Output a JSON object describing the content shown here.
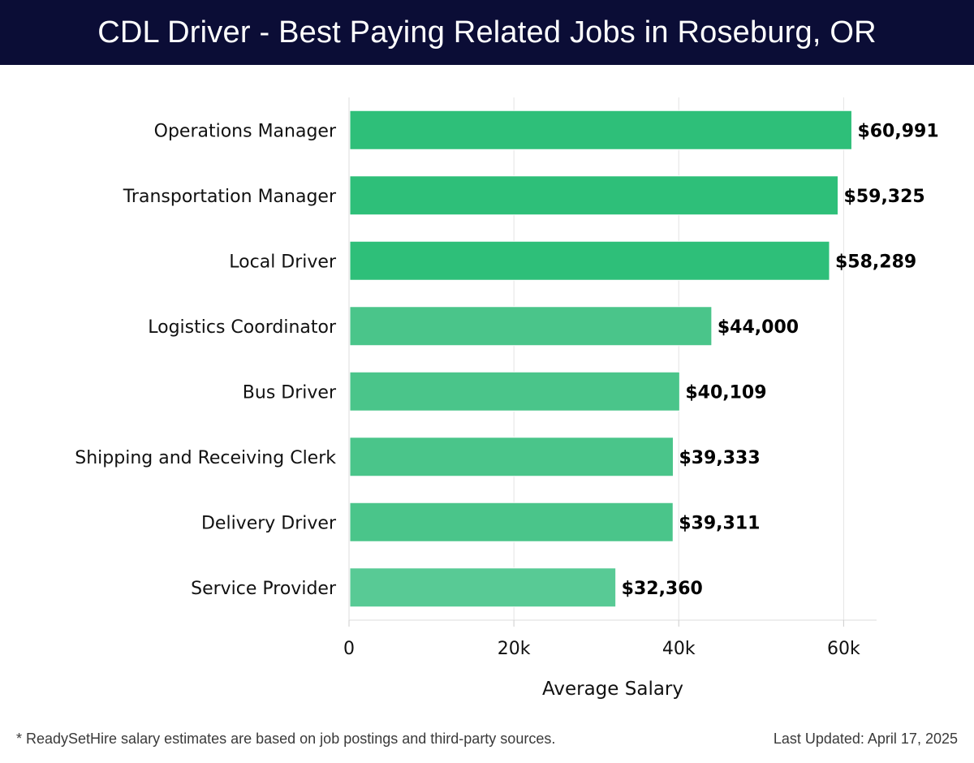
{
  "header": {
    "title": "CDL Driver - Best Paying Related Jobs in Roseburg, OR"
  },
  "chart_data": {
    "type": "bar",
    "orientation": "horizontal",
    "categories": [
      "Operations Manager",
      "Transportation Manager",
      "Local Driver",
      "Logistics Coordinator",
      "Bus Driver",
      "Shipping and Receiving Clerk",
      "Delivery Driver",
      "Service Provider"
    ],
    "values": [
      60991,
      59325,
      58289,
      44000,
      40109,
      39333,
      39311,
      32360
    ],
    "value_labels": [
      "$60,991",
      "$59,325",
      "$58,289",
      "$44,000",
      "$40,109",
      "$39,333",
      "$39,311",
      "$32,360"
    ],
    "bar_colors": [
      "#2ebf79",
      "#2ebf79",
      "#2ebf79",
      "#4ac58a",
      "#4ac58a",
      "#4ac58a",
      "#4ac58a",
      "#58ca95"
    ],
    "xlim": [
      0,
      64000
    ],
    "xticks": [
      0,
      20000,
      40000,
      60000
    ],
    "xtick_labels": [
      "0",
      "20k",
      "40k",
      "60k"
    ],
    "xlabel": "Average Salary",
    "grid": true
  },
  "footer": {
    "note": "* ReadySetHire salary estimates are based on job postings and third-party sources.",
    "updated": "Last Updated: April 17, 2025"
  }
}
